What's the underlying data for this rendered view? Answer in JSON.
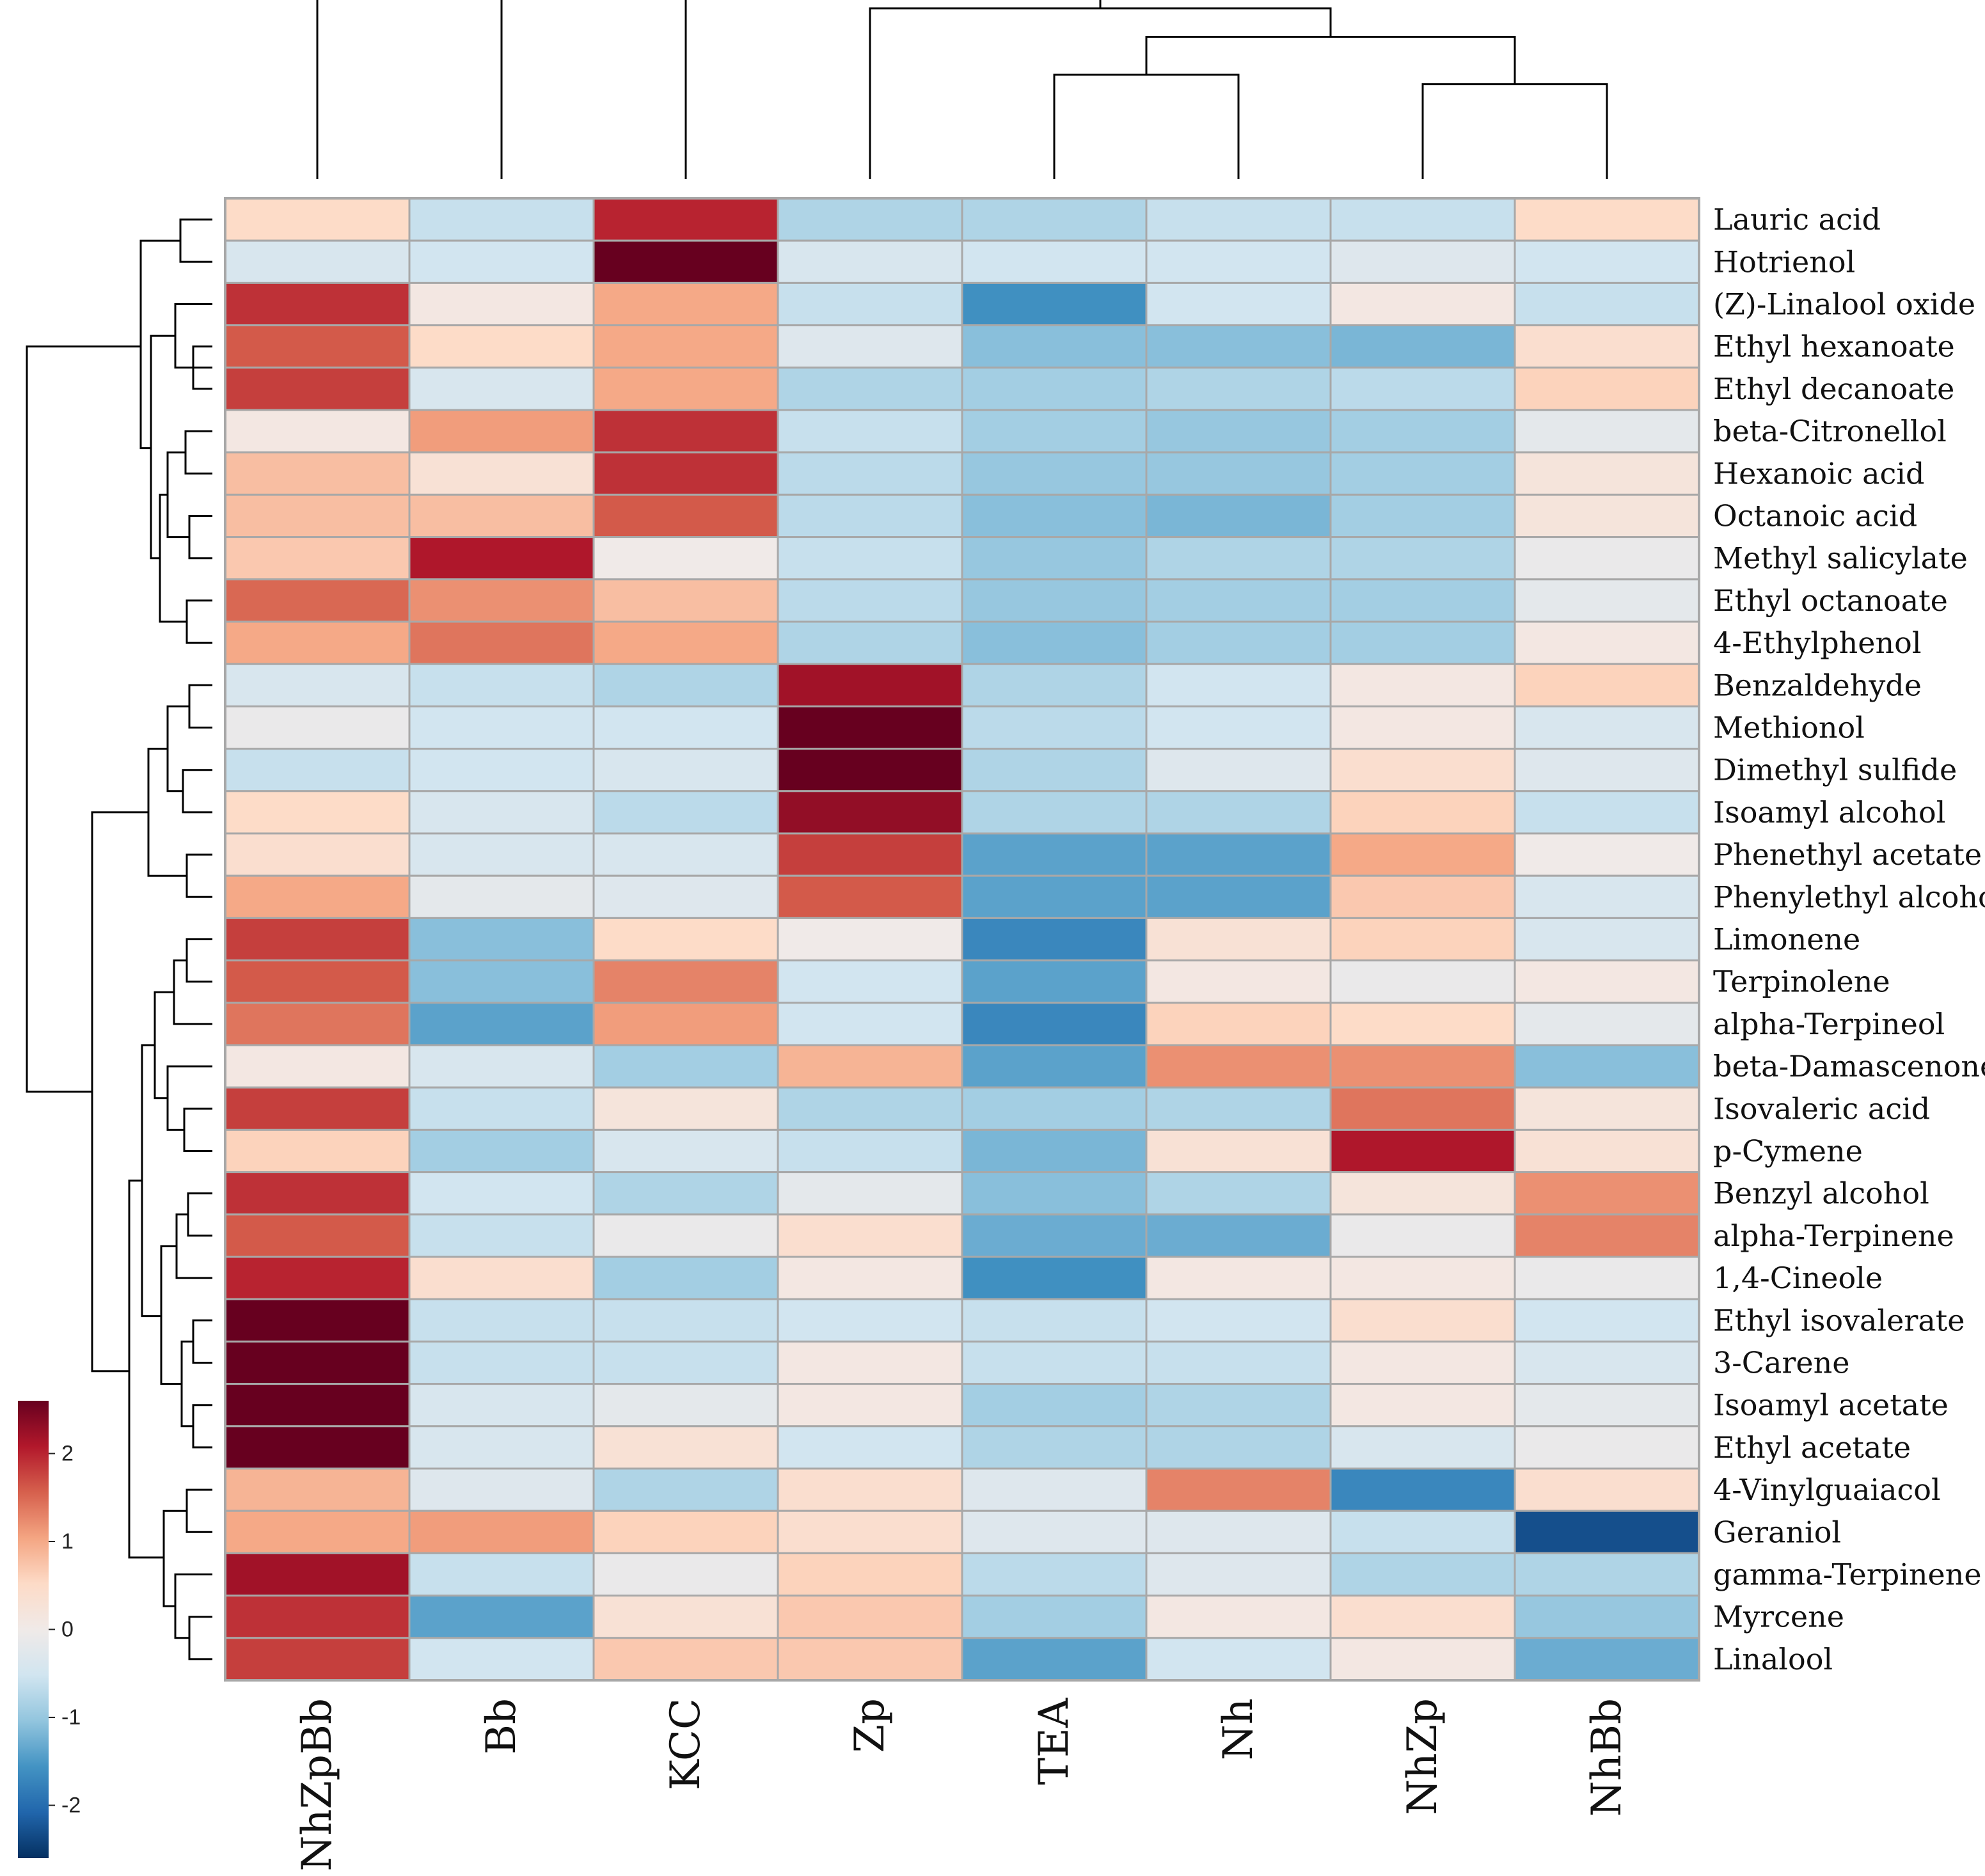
{
  "chart_data": {
    "type": "heatmap",
    "title": "",
    "columns": [
      "NhZpBb",
      "Bb",
      "KCC",
      "Zp",
      "TEA",
      "Nh",
      "NhZp",
      "NhBb"
    ],
    "rows": [
      "Lauric acid",
      "Hotrienol",
      "(Z)-Linalool oxide",
      "Ethyl hexanoate",
      "Ethyl decanoate",
      "beta-Citronellol",
      "Hexanoic acid",
      "Octanoic acid",
      "Methyl salicylate",
      "Ethyl octanoate",
      "4-Ethylphenol",
      "Benzaldehyde",
      "Methionol",
      "Dimethyl sulfide",
      "Isoamyl alcohol",
      "Phenethyl acetate",
      "Phenylethyl alcohol",
      "Limonene",
      "Terpinolene",
      "alpha-Terpineol",
      "beta-Damascenone",
      "Isovaleric acid",
      "p-Cymene",
      "Benzyl alcohol",
      "alpha-Terpinene",
      "1,4-Cineole",
      "Ethyl isovalerate",
      "3-Carene",
      "Isoamyl acetate",
      "Ethyl acetate",
      "4-Vinylguaiacol",
      "Geraniol",
      "gamma-Terpinene",
      "Myrcene",
      "Linalool"
    ],
    "values": [
      [
        0.5,
        -0.6,
        2.0,
        -0.8,
        -0.8,
        -0.6,
        -0.6,
        0.5
      ],
      [
        -0.4,
        -0.5,
        2.6,
        -0.4,
        -0.5,
        -0.5,
        -0.3,
        -0.5
      ],
      [
        1.9,
        0.1,
        1.0,
        -0.6,
        -1.6,
        -0.5,
        0.1,
        -0.6
      ],
      [
        1.6,
        0.5,
        1.0,
        -0.3,
        -1.1,
        -1.1,
        -1.2,
        0.4
      ],
      [
        1.8,
        -0.4,
        1.0,
        -0.8,
        -0.9,
        -0.8,
        -0.7,
        0.6
      ],
      [
        0.1,
        1.1,
        1.9,
        -0.6,
        -0.9,
        -1.0,
        -0.9,
        -0.2
      ],
      [
        0.8,
        0.3,
        1.9,
        -0.7,
        -1.0,
        -1.0,
        -0.9,
        0.2
      ],
      [
        0.8,
        0.8,
        1.6,
        -0.7,
        -1.1,
        -1.2,
        -0.9,
        0.2
      ],
      [
        0.7,
        2.1,
        0.0,
        -0.6,
        -1.0,
        -0.8,
        -0.8,
        -0.1
      ],
      [
        1.5,
        1.2,
        0.8,
        -0.7,
        -1.0,
        -0.9,
        -0.9,
        -0.2
      ],
      [
        1.0,
        1.4,
        1.0,
        -0.8,
        -1.1,
        -0.9,
        -0.9,
        0.1
      ],
      [
        -0.4,
        -0.6,
        -0.8,
        2.2,
        -0.8,
        -0.5,
        0.1,
        0.6
      ],
      [
        -0.1,
        -0.5,
        -0.5,
        2.6,
        -0.7,
        -0.5,
        0.1,
        -0.4
      ],
      [
        -0.6,
        -0.5,
        -0.4,
        2.6,
        -0.8,
        -0.3,
        0.4,
        -0.3
      ],
      [
        0.5,
        -0.4,
        -0.7,
        2.3,
        -0.8,
        -0.8,
        0.6,
        -0.6
      ],
      [
        0.4,
        -0.4,
        -0.4,
        1.8,
        -1.4,
        -1.4,
        1.0,
        0.0
      ],
      [
        1.0,
        -0.2,
        -0.3,
        1.6,
        -1.4,
        -1.4,
        0.7,
        -0.4
      ],
      [
        1.8,
        -1.1,
        0.5,
        0.0,
        -1.7,
        0.3,
        0.6,
        -0.4
      ],
      [
        1.6,
        -1.1,
        1.3,
        -0.5,
        -1.4,
        0.1,
        -0.1,
        0.1
      ],
      [
        1.4,
        -1.4,
        1.1,
        -0.5,
        -1.7,
        0.6,
        0.5,
        -0.2
      ],
      [
        0.1,
        -0.4,
        -0.9,
        0.9,
        -1.4,
        1.2,
        1.2,
        -1.1
      ],
      [
        1.8,
        -0.6,
        0.2,
        -0.8,
        -0.9,
        -0.8,
        1.4,
        0.2
      ],
      [
        0.6,
        -0.9,
        -0.4,
        -0.6,
        -1.2,
        0.3,
        2.1,
        0.3
      ],
      [
        1.9,
        -0.5,
        -0.8,
        -0.2,
        -1.1,
        -0.8,
        0.2,
        1.2
      ],
      [
        1.6,
        -0.6,
        -0.1,
        0.4,
        -1.3,
        -1.3,
        -0.1,
        1.3
      ],
      [
        2.0,
        0.4,
        -0.9,
        0.1,
        -1.6,
        0.1,
        0.1,
        -0.1
      ],
      [
        2.6,
        -0.6,
        -0.6,
        -0.5,
        -0.6,
        -0.5,
        0.4,
        -0.5
      ],
      [
        2.6,
        -0.6,
        -0.6,
        0.1,
        -0.6,
        -0.6,
        0.1,
        -0.4
      ],
      [
        2.6,
        -0.4,
        -0.2,
        0.1,
        -0.9,
        -0.8,
        0.1,
        -0.2
      ],
      [
        2.6,
        -0.4,
        0.3,
        -0.5,
        -0.8,
        -0.8,
        -0.4,
        -0.1
      ],
      [
        0.9,
        -0.3,
        -0.8,
        0.4,
        -0.3,
        1.3,
        -1.7,
        0.4
      ],
      [
        1.0,
        1.1,
        0.6,
        0.4,
        -0.3,
        -0.3,
        -0.6,
        -2.3
      ],
      [
        2.2,
        -0.6,
        -0.1,
        0.6,
        -0.7,
        -0.3,
        -0.8,
        -0.8
      ],
      [
        1.9,
        -1.4,
        0.3,
        0.7,
        -0.9,
        0.1,
        0.4,
        -1.0
      ],
      [
        1.8,
        -0.5,
        0.7,
        0.7,
        -1.4,
        -0.5,
        0.1,
        -1.3
      ]
    ],
    "color_scale": {
      "range": [
        -2.6,
        2.6
      ],
      "colors": [
        "#053061",
        "#2166ac",
        "#4393c3",
        "#92c5de",
        "#d1e5f0",
        "#f0eae8",
        "#fddbc7",
        "#f4a582",
        "#d6604d",
        "#b2182b",
        "#67001f"
      ]
    },
    "legend": {
      "ticks": [
        "2",
        "1",
        "0",
        "-1",
        "-2"
      ],
      "tick_values": [
        2,
        1,
        0,
        -1,
        -2
      ],
      "placement": "bottom-left"
    },
    "column_dendrogram": {
      "merges": [
        [
          1,
          2,
          1.0
        ],
        [
          4,
          5,
          0.55
        ],
        [
          6,
          7,
          0.5
        ],
        [
          -2,
          -3,
          0.75
        ],
        [
          3,
          -4,
          0.9
        ],
        [
          -1,
          -5,
          1.2
        ],
        [
          0,
          -6,
          1.75
        ]
      ]
    },
    "row_clusters": [
      "1-11",
      "12-17",
      "18-35"
    ]
  }
}
